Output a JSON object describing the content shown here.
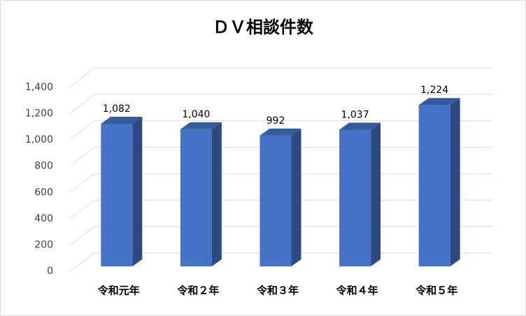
{
  "chart_data": {
    "type": "bar3d",
    "title": "ＤＶ相談件数",
    "categories": [
      "令和元年",
      "令和２年",
      "令和３年",
      "令和４年",
      "令和５年"
    ],
    "values": [
      1082,
      1040,
      992,
      1037,
      1224
    ],
    "value_labels": [
      "1,082",
      "1,040",
      "992",
      "1,037",
      "1,224"
    ],
    "color": "#4472c4",
    "ylim": [
      0,
      1400
    ],
    "yticks": [
      0,
      200,
      400,
      600,
      800,
      {
        "value": 1000,
        "label": "1,000"
      },
      {
        "value": 1200,
        "label": "1,200"
      },
      {
        "value": 1400,
        "label": "1,400"
      }
    ],
    "grid": true
  }
}
